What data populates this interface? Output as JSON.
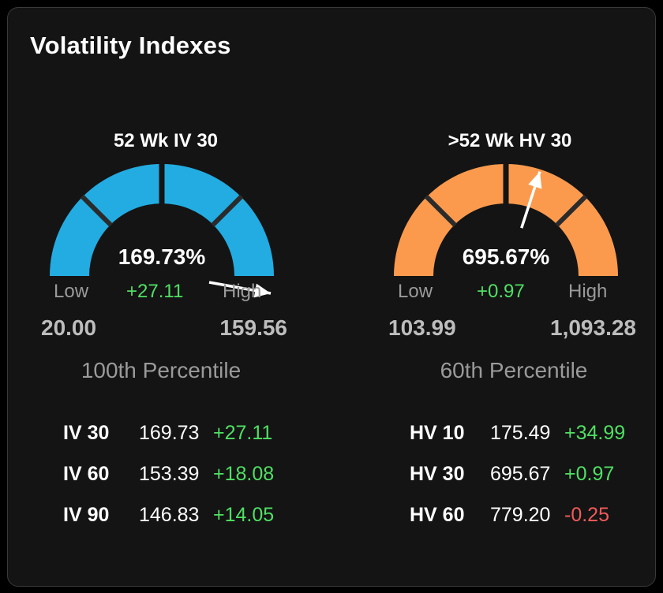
{
  "title": "Volatility Indexes",
  "colors": {
    "iv_gauge": "#22ace2",
    "hv_gauge": "#fb9a4d",
    "positive": "#4fe063",
    "negative": "#f25a5a"
  },
  "iv_gauge": {
    "title": "52 Wk IV 30",
    "value": "169.73%",
    "low_label": "Low",
    "change": "+27.11",
    "high_label": "High",
    "low": "20.00",
    "high": "159.56",
    "percentile": "100th Percentile",
    "fill_fraction": 1.0,
    "needle_fraction": 1.08
  },
  "hv_gauge": {
    "title": ">52 Wk HV 30",
    "value": "695.67%",
    "low_label": "Low",
    "change": "+0.97",
    "high_label": "High",
    "low": "103.99",
    "high": "1,093.28",
    "percentile": "60th Percentile",
    "fill_fraction": 1.0,
    "needle_fraction": 0.6
  },
  "iv_table": [
    {
      "name": "IV 30",
      "value": "169.73",
      "change": "+27.11",
      "direction": "pos"
    },
    {
      "name": "IV 60",
      "value": "153.39",
      "change": "+18.08",
      "direction": "pos"
    },
    {
      "name": "IV 90",
      "value": "146.83",
      "change": "+14.05",
      "direction": "pos"
    }
  ],
  "hv_table": [
    {
      "name": "HV 10",
      "value": "175.49",
      "change": "+34.99",
      "direction": "pos"
    },
    {
      "name": "HV 30",
      "value": "695.67",
      "change": "+0.97",
      "direction": "pos"
    },
    {
      "name": "HV 60",
      "value": "779.20",
      "change": "-0.25",
      "direction": "neg"
    }
  ]
}
